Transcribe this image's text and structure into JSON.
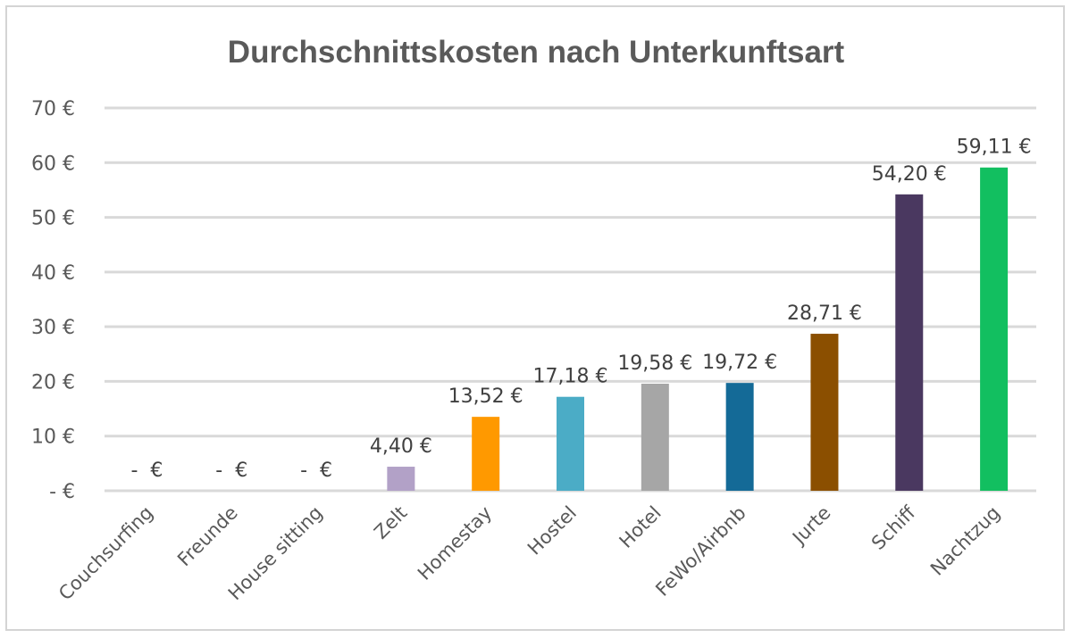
{
  "chart_data": {
    "type": "bar",
    "title": "Durchschnittskosten nach Unterkunftsart",
    "xlabel": "",
    "ylabel": "",
    "ylim": [
      0,
      70
    ],
    "y_ticks": [
      0,
      10,
      20,
      30,
      40,
      50,
      60,
      70
    ],
    "y_tick_labels": [
      "- €",
      "10 €",
      "20 €",
      "30 €",
      "40 €",
      "50 €",
      "60 €",
      "70 €"
    ],
    "grid": true,
    "legend": "none",
    "categories": [
      "Couchsurfing",
      "Freunde",
      "House sitting",
      "Zelt",
      "Homestay",
      "Hostel",
      "Hotel",
      "FeWo/Airbnb",
      "Jurte",
      "Schiff",
      "Nachtzug"
    ],
    "values": [
      0,
      0,
      0,
      4.4,
      13.52,
      17.18,
      19.58,
      19.72,
      28.71,
      54.2,
      59.11
    ],
    "data_labels": [
      "-  €",
      "-  €",
      "-  €",
      "4,40 €",
      "13,52 €",
      "17,18 €",
      "19,58 €",
      "19,72 €",
      "28,71 €",
      "54,20 €",
      "59,11 €"
    ],
    "colors": [
      "#b2a1c7",
      "#b2a1c7",
      "#b2a1c7",
      "#b2a1c7",
      "#ff9900",
      "#4bacc6",
      "#a6a6a6",
      "#146a97",
      "#8b4f00",
      "#4a3860",
      "#12bf60"
    ]
  }
}
